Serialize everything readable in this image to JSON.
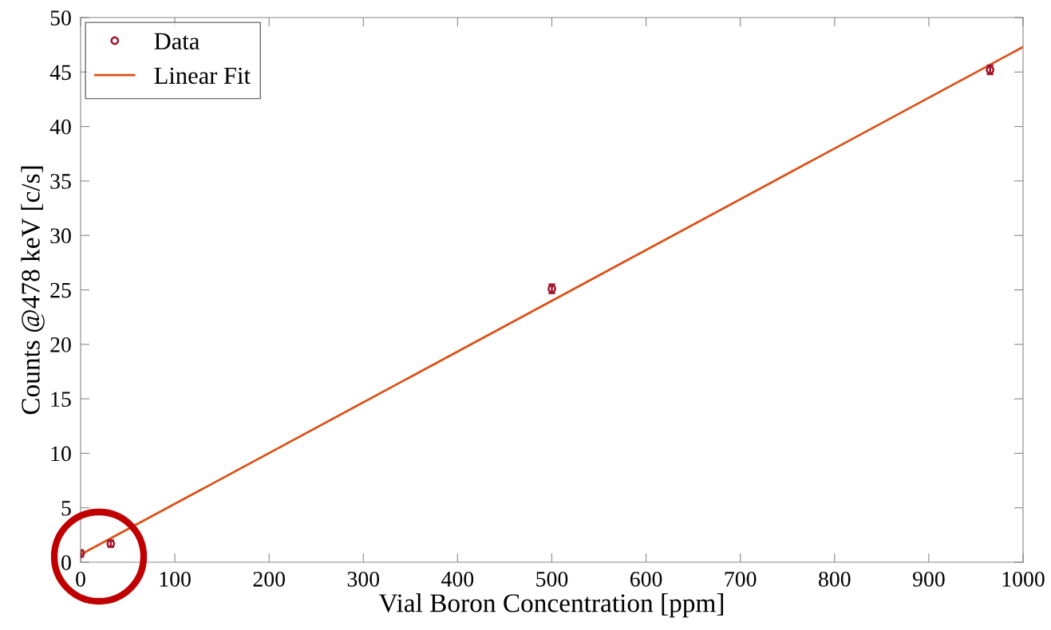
{
  "chart_data": {
    "type": "scatter",
    "xlabel": "Vial Boron Concentration [ppm]",
    "ylabel": "Counts @478 keV [c/s]",
    "series": [
      {
        "name": "Data",
        "color": "#a2142f",
        "x": [
          0,
          32,
          500,
          965
        ],
        "values": [
          0.8,
          1.7,
          25.1,
          45.2
        ],
        "errors": [
          0.3,
          0.3,
          0.4,
          0.4
        ],
        "marker": "circle"
      },
      {
        "name": "Linear Fit",
        "type": "line",
        "color": "#d95319",
        "x": [
          0,
          1000
        ],
        "values": [
          0.7,
          47.3
        ],
        "marker": "none",
        "line_style": "solid"
      }
    ],
    "xlim": [
      0,
      1000
    ],
    "xticks": [
      0,
      100,
      200,
      300,
      400,
      500,
      600,
      700,
      800,
      900,
      1000
    ],
    "ylim": [
      0,
      50
    ],
    "yticks": [
      0,
      5,
      10,
      15,
      20,
      25,
      30,
      35,
      40,
      45,
      50
    ],
    "grid": false,
    "legend": "top left"
  }
}
